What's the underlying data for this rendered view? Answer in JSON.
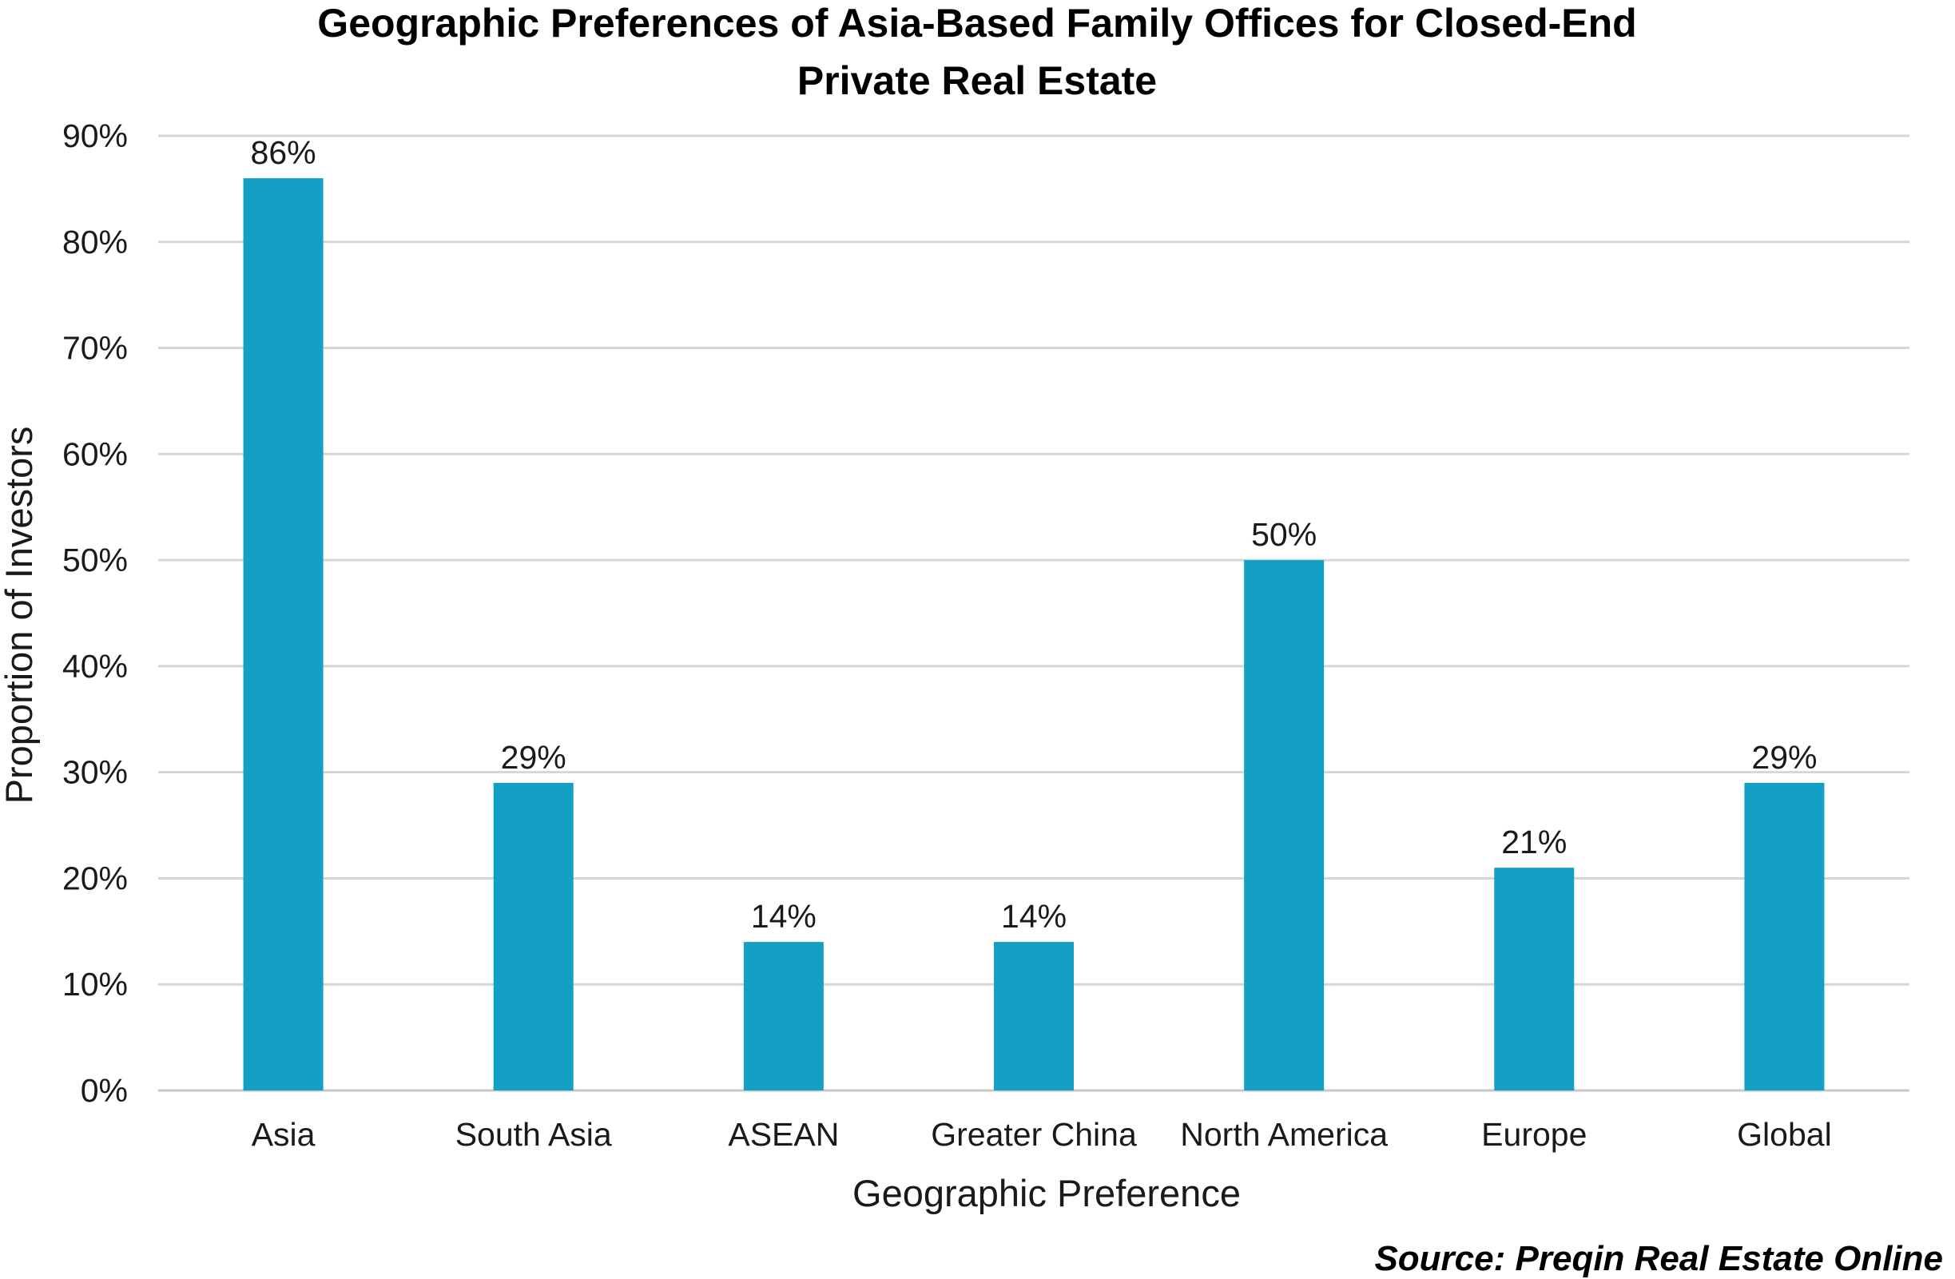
{
  "chart_data": {
    "type": "bar",
    "title_lines": [
      "Geographic Preferences of Asia-Based Family Offices for Closed-End",
      "Private Real Estate"
    ],
    "categories": [
      "Asia",
      "South Asia",
      "ASEAN",
      "Greater China",
      "North America",
      "Europe",
      "Global"
    ],
    "values": [
      86,
      29,
      14,
      14,
      50,
      21,
      29
    ],
    "data_labels": [
      "86%",
      "29%",
      "14%",
      "14%",
      "50%",
      "21%",
      "29%"
    ],
    "xlabel": "Geographic Preference",
    "ylabel": "Proportion of Investors",
    "ylim": [
      0,
      90
    ],
    "yticks": [
      0,
      10,
      20,
      30,
      40,
      50,
      60,
      70,
      80,
      90
    ],
    "ytick_labels": [
      "0%",
      "10%",
      "20%",
      "30%",
      "40%",
      "50%",
      "60%",
      "70%",
      "80%",
      "90%"
    ],
    "grid": true,
    "legend": "none",
    "bar_color": "#14a0c4",
    "source": "Source: Preqin Real Estate Online"
  }
}
